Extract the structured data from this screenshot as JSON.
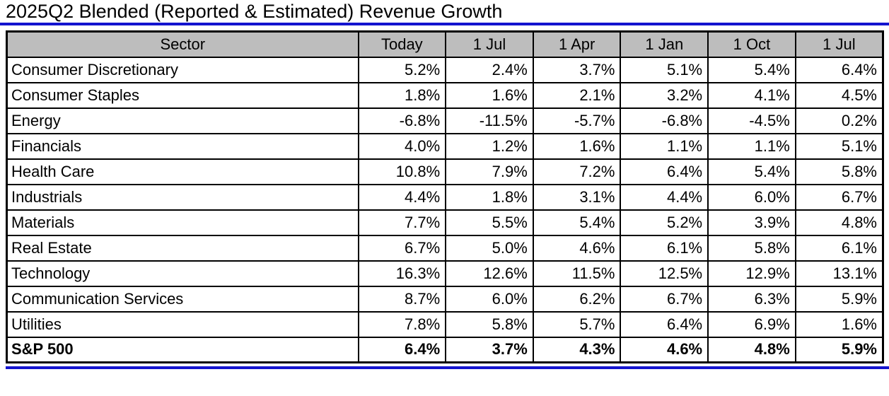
{
  "title": "2025Q2 Blended (Reported & Estimated) Revenue Growth",
  "colors": {
    "accent_blue": "#1414cf",
    "header_bg": "#bdbdbd",
    "grid_black": "#000000"
  },
  "chart_data": {
    "type": "table",
    "title": "2025Q2 Blended (Reported & Estimated) Revenue Growth",
    "columns": [
      "Sector",
      "Today",
      "1 Jul",
      "1 Apr",
      "1 Jan",
      "1 Oct",
      "1 Jul"
    ],
    "rows": [
      [
        "Consumer Discretionary",
        "5.2%",
        "2.4%",
        "3.7%",
        "5.1%",
        "5.4%",
        "6.4%"
      ],
      [
        "Consumer Staples",
        "1.8%",
        "1.6%",
        "2.1%",
        "3.2%",
        "4.1%",
        "4.5%"
      ],
      [
        "Energy",
        "-6.8%",
        "-11.5%",
        "-5.7%",
        "-6.8%",
        "-4.5%",
        "0.2%"
      ],
      [
        "Financials",
        "4.0%",
        "1.2%",
        "1.6%",
        "1.1%",
        "1.1%",
        "5.1%"
      ],
      [
        "Health Care",
        "10.8%",
        "7.9%",
        "7.2%",
        "6.4%",
        "5.4%",
        "5.8%"
      ],
      [
        "Industrials",
        "4.4%",
        "1.8%",
        "3.1%",
        "4.4%",
        "6.0%",
        "6.7%"
      ],
      [
        "Materials",
        "7.7%",
        "5.5%",
        "5.4%",
        "5.2%",
        "3.9%",
        "4.8%"
      ],
      [
        "Real Estate",
        "6.7%",
        "5.0%",
        "4.6%",
        "6.1%",
        "5.8%",
        "6.1%"
      ],
      [
        "Technology",
        "16.3%",
        "12.6%",
        "11.5%",
        "12.5%",
        "12.9%",
        "13.1%"
      ],
      [
        "Communication Services",
        "8.7%",
        "6.0%",
        "6.2%",
        "6.7%",
        "6.3%",
        "5.9%"
      ],
      [
        "Utilities",
        "7.8%",
        "5.8%",
        "5.7%",
        "6.4%",
        "6.9%",
        "1.6%"
      ],
      [
        "S&P 500",
        "6.4%",
        "3.7%",
        "4.3%",
        "4.6%",
        "4.8%",
        "5.9%"
      ]
    ],
    "total_row_label": "S&P 500",
    "layout": {
      "header_background": "gray",
      "total_row_bold": true,
      "grid": true
    }
  }
}
